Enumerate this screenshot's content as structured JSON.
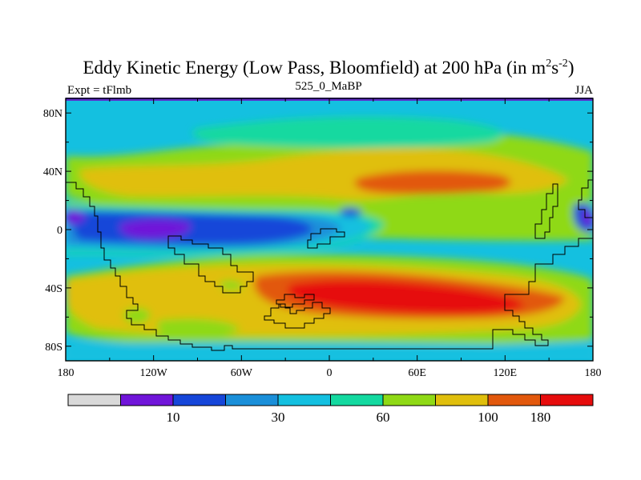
{
  "title": "Eddy Kinetic Energy (Low Pass, Bloomfield) at 200 hPa (in m",
  "title_sup1": "2",
  "title_mid": "s",
  "title_sup2": "-2",
  "title_end": ")",
  "left_label": "Expt = tFlmb",
  "center_label": "525_0_MaBP",
  "right_label": "JJA",
  "colors": {
    "levels": [
      "#d9d9d9",
      "#7015d9",
      "#1646d9",
      "#1a8fd9",
      "#14c0e0",
      "#14d9a0",
      "#8fd916",
      "#e0bf0c",
      "#e2580c",
      "#e60c0c"
    ],
    "coastline": "#000000",
    "top_strip": "#5b2dc9"
  },
  "chart_data": {
    "type": "contour-map",
    "variable": "Eddy Kinetic Energy",
    "units": "m2 s-2",
    "level": "200 hPa",
    "x_range": [
      -180,
      180
    ],
    "y_range": [
      -90,
      90
    ],
    "x_ticks": [
      {
        "value": -180,
        "label": "180"
      },
      {
        "value": -120,
        "label": "120W"
      },
      {
        "value": -60,
        "label": "60W"
      },
      {
        "value": 0,
        "label": "0"
      },
      {
        "value": 60,
        "label": "60E"
      },
      {
        "value": 120,
        "label": "120E"
      },
      {
        "value": 180,
        "label": "180"
      }
    ],
    "y_ticks": [
      {
        "value": 80,
        "label": "80N"
      },
      {
        "value": 40,
        "label": "40N"
      },
      {
        "value": 0,
        "label": "0"
      },
      {
        "value": -40,
        "label": "40S"
      },
      {
        "value": -80,
        "label": "80S"
      }
    ],
    "colorbar_boundaries": [
      10,
      30,
      60,
      100,
      180
    ],
    "colorbar_labels": [
      "10",
      "30",
      "60",
      "100",
      "180"
    ]
  }
}
